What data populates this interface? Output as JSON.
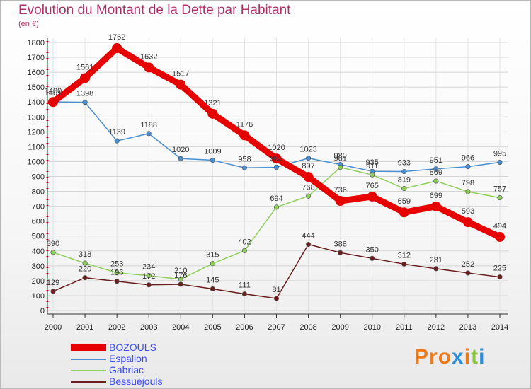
{
  "title": "Evolution du Montant de la Dette par Habitant",
  "unit": "(en €)",
  "logo": {
    "chars": [
      "P",
      "r",
      "o",
      "x",
      "i",
      "t",
      "i"
    ],
    "colors": [
      "#f07a1a",
      "#f07a1a",
      "#f07a1a",
      "#2a8fd8",
      "#f07a1a",
      "#8cc63f",
      "#2a8fd8"
    ]
  },
  "chart_data": {
    "type": "line",
    "title": "Evolution du Montant de la Dette par Habitant",
    "xlabel": "",
    "ylabel": "(en €)",
    "x": [
      "2000",
      "2001",
      "2002",
      "2003",
      "2004",
      "2005",
      "2006",
      "2007",
      "2008",
      "2009",
      "2010",
      "2011",
      "2012",
      "2013",
      "2014"
    ],
    "ylim": [
      0,
      1800
    ],
    "yticks": [
      0,
      100,
      200,
      300,
      400,
      500,
      600,
      700,
      800,
      900,
      1000,
      1100,
      1200,
      1300,
      1400,
      1500,
      1600,
      1700,
      1800
    ],
    "grid": true,
    "legend": "bottom-left",
    "series": [
      {
        "name": "BOZOULS",
        "color": "#e60000",
        "values": [
          1400,
          1561,
          1762,
          1632,
          1517,
          1321,
          1176,
          1020,
          897,
          736,
          765,
          659,
          699,
          593,
          494
        ]
      },
      {
        "name": "Espalion",
        "color": "#4a8fd0",
        "values": [
          1401,
          1398,
          1139,
          1188,
          1020,
          1009,
          958,
          962,
          1023,
          980,
          935,
          933,
          951,
          966,
          995
        ]
      },
      {
        "name": "Gabriac",
        "color": "#8ed05a",
        "values": [
          390,
          318,
          253,
          234,
          210,
          315,
          402,
          694,
          768,
          961,
          911,
          819,
          869,
          798,
          757
        ]
      },
      {
        "name": "Bessuéjouls",
        "color": "#6b1d1d",
        "values": [
          129,
          220,
          196,
          172,
          176,
          145,
          111,
          81,
          444,
          388,
          350,
          312,
          281,
          252,
          225
        ]
      }
    ]
  }
}
